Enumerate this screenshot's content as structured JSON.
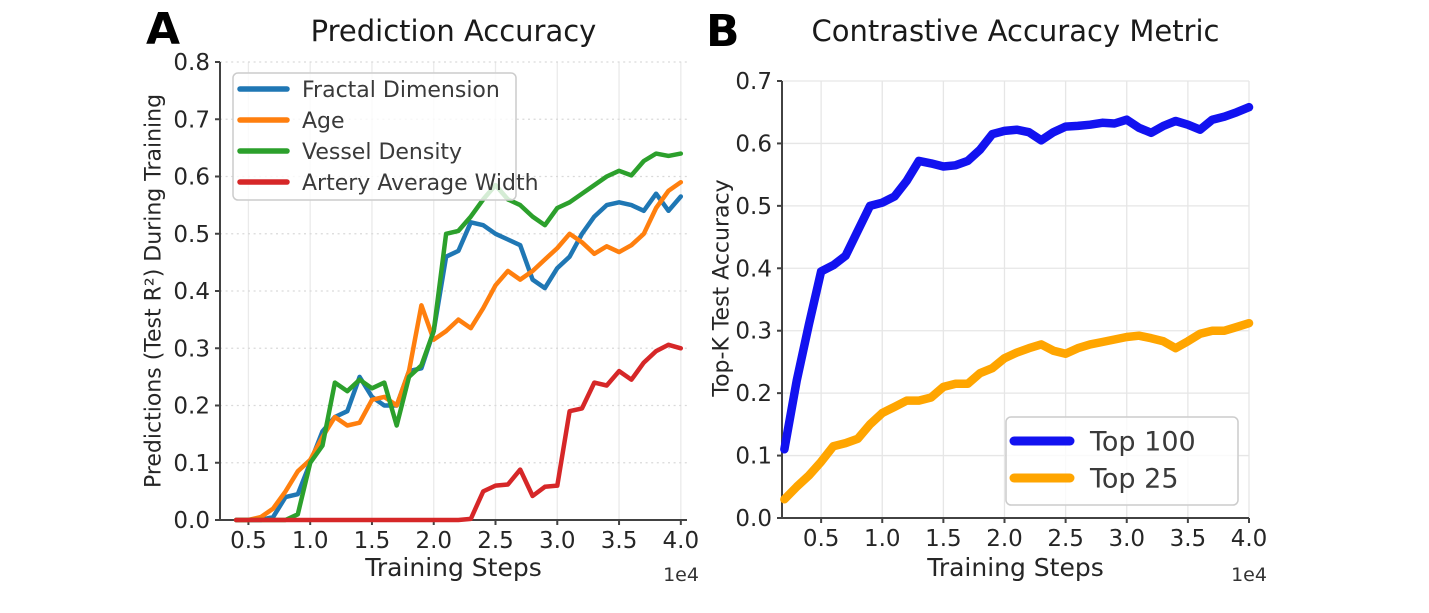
{
  "style": {
    "background": "#ffffff",
    "axis_color": "#424242",
    "grid_color_a_v": "#eaeaea",
    "grid_color_a_h": "#d9d9d9",
    "grid_color_b": "#e6e6e6",
    "tick_label_color": "#262626",
    "title_color": "#1a1a1a",
    "legend_text_color": "#3a3a3a",
    "legend_border_color": "#cccccc"
  },
  "chart_data": [
    {
      "type": "line",
      "panel_letter": "A",
      "title": "Prediction Accuracy",
      "xlabel": "Training Steps",
      "ylabel": "Predictions (Test R²) During Training",
      "x_axis_offset_label": "1e4",
      "xlim": [
        0.27,
        4.05
      ],
      "ylim": [
        0.0,
        0.8
      ],
      "x_ticks": [
        0.5,
        1.0,
        1.5,
        2.0,
        2.5,
        3.0,
        3.5,
        4.0
      ],
      "x_tick_labels": [
        "0.5",
        "1.0",
        "1.5",
        "2.0",
        "2.5",
        "3.0",
        "3.5",
        "4.0"
      ],
      "y_ticks": [
        0.0,
        0.1,
        0.2,
        0.3,
        0.4,
        0.5,
        0.6,
        0.7,
        0.8
      ],
      "y_tick_labels": [
        "0.0",
        "0.1",
        "0.2",
        "0.3",
        "0.4",
        "0.5",
        "0.6",
        "0.7",
        "0.8"
      ],
      "grid": true,
      "legend_position": "upper left",
      "x": [
        0.4,
        0.5,
        0.6,
        0.7,
        0.8,
        0.9,
        1.0,
        1.1,
        1.2,
        1.3,
        1.4,
        1.5,
        1.6,
        1.7,
        1.8,
        1.9,
        2.0,
        2.1,
        2.2,
        2.3,
        2.4,
        2.5,
        2.6,
        2.7,
        2.8,
        2.9,
        3.0,
        3.1,
        3.2,
        3.3,
        3.4,
        3.5,
        3.6,
        3.7,
        3.8,
        3.9,
        4.0
      ],
      "series": [
        {
          "name": "Fractal Dimension",
          "color": "#1f77b4",
          "values": [
            0,
            0,
            0,
            0.005,
            0.04,
            0.045,
            0.1,
            0.155,
            0.18,
            0.19,
            0.25,
            0.215,
            0.2,
            0.2,
            0.26,
            0.265,
            0.33,
            0.46,
            0.47,
            0.52,
            0.515,
            0.5,
            0.49,
            0.48,
            0.42,
            0.405,
            0.44,
            0.46,
            0.5,
            0.53,
            0.55,
            0.555,
            0.55,
            0.54,
            0.57,
            0.54,
            0.565
          ]
        },
        {
          "name": "Age",
          "color": "#ff7f0e",
          "values": [
            0,
            0,
            0.005,
            0.02,
            0.05,
            0.085,
            0.105,
            0.145,
            0.18,
            0.165,
            0.17,
            0.21,
            0.215,
            0.2,
            0.26,
            0.375,
            0.315,
            0.33,
            0.35,
            0.335,
            0.37,
            0.41,
            0.435,
            0.42,
            0.435,
            0.455,
            0.475,
            0.5,
            0.485,
            0.465,
            0.478,
            0.468,
            0.48,
            0.5,
            0.545,
            0.575,
            0.59
          ]
        },
        {
          "name": "Vessel Density",
          "color": "#2ca02c",
          "values": [
            0,
            0,
            0,
            0,
            0,
            0.01,
            0.1,
            0.13,
            0.24,
            0.225,
            0.245,
            0.23,
            0.24,
            0.165,
            0.25,
            0.27,
            0.33,
            0.5,
            0.505,
            0.53,
            0.56,
            0.585,
            0.56,
            0.55,
            0.53,
            0.515,
            0.545,
            0.555,
            0.57,
            0.585,
            0.6,
            0.61,
            0.602,
            0.627,
            0.64,
            0.636,
            0.64
          ]
        },
        {
          "name": "Artery Average Width",
          "color": "#d62728",
          "values": [
            0,
            0,
            0,
            0,
            0,
            0,
            0,
            0,
            0,
            0,
            0,
            0,
            0,
            0,
            0,
            0,
            0,
            0,
            0,
            0.002,
            0.05,
            0.06,
            0.062,
            0.088,
            0.042,
            0.058,
            0.06,
            0.19,
            0.195,
            0.24,
            0.235,
            0.26,
            0.245,
            0.275,
            0.295,
            0.306,
            0.3
          ]
        }
      ]
    },
    {
      "type": "line",
      "panel_letter": "B",
      "title": "Contrastive Accuracy Metric",
      "xlabel": "Training Steps",
      "ylabel": "Top-K Test Accuracy",
      "x_axis_offset_label": "1e4",
      "xlim": [
        0.18,
        4.0
      ],
      "ylim": [
        0.0,
        0.7
      ],
      "x_ticks": [
        0.5,
        1.0,
        1.5,
        2.0,
        2.5,
        3.0,
        3.5,
        4.0
      ],
      "x_tick_labels": [
        "0.5",
        "1.0",
        "1.5",
        "2.0",
        "2.5",
        "3.0",
        "3.5",
        "4.0"
      ],
      "y_ticks": [
        0.0,
        0.1,
        0.2,
        0.3,
        0.4,
        0.5,
        0.6,
        0.7
      ],
      "y_tick_labels": [
        "0.0",
        "0.1",
        "0.2",
        "0.3",
        "0.4",
        "0.5",
        "0.6",
        "0.7"
      ],
      "grid": true,
      "legend_position": "lower right",
      "x": [
        0.2,
        0.3,
        0.4,
        0.5,
        0.6,
        0.7,
        0.8,
        0.9,
        1.0,
        1.1,
        1.2,
        1.3,
        1.4,
        1.5,
        1.6,
        1.7,
        1.8,
        1.9,
        2.0,
        2.1,
        2.2,
        2.3,
        2.4,
        2.5,
        2.6,
        2.7,
        2.8,
        2.9,
        3.0,
        3.1,
        3.2,
        3.3,
        3.4,
        3.5,
        3.6,
        3.7,
        3.8,
        3.9,
        4.0
      ],
      "series": [
        {
          "name": "Top 100",
          "color": "#1212f0",
          "values": [
            0.11,
            0.22,
            0.31,
            0.395,
            0.405,
            0.42,
            0.46,
            0.5,
            0.505,
            0.515,
            0.54,
            0.572,
            0.568,
            0.563,
            0.565,
            0.572,
            0.59,
            0.615,
            0.62,
            0.622,
            0.618,
            0.605,
            0.618,
            0.627,
            0.628,
            0.63,
            0.633,
            0.632,
            0.638,
            0.625,
            0.617,
            0.628,
            0.636,
            0.63,
            0.622,
            0.638,
            0.643,
            0.65,
            0.658
          ]
        },
        {
          "name": "Top 25",
          "color": "#ffa500",
          "values": [
            0.03,
            0.05,
            0.068,
            0.09,
            0.115,
            0.12,
            0.127,
            0.15,
            0.168,
            0.178,
            0.188,
            0.188,
            0.193,
            0.21,
            0.215,
            0.215,
            0.232,
            0.24,
            0.256,
            0.265,
            0.272,
            0.278,
            0.268,
            0.263,
            0.272,
            0.278,
            0.282,
            0.286,
            0.29,
            0.292,
            0.288,
            0.283,
            0.272,
            0.283,
            0.295,
            0.3,
            0.3,
            0.306,
            0.312
          ]
        }
      ]
    }
  ]
}
